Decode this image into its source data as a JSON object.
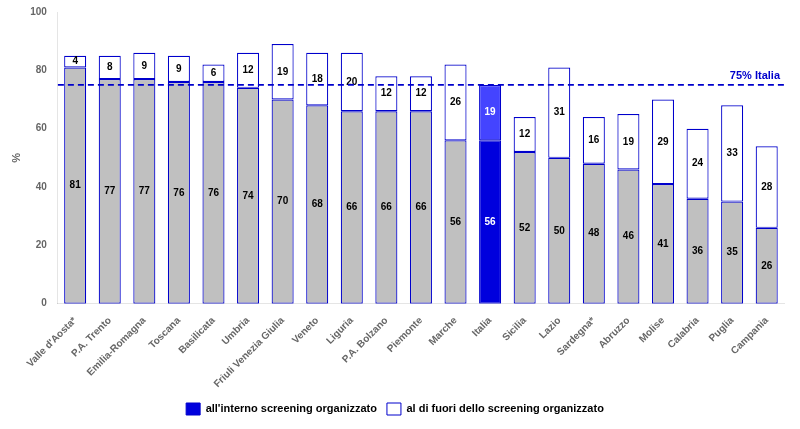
{
  "chart_data": {
    "type": "bar",
    "stacked": true,
    "categories": [
      "Valle d'Aosta*",
      "P.A. Trento",
      "Emilia-Romagna",
      "Toscana",
      "Basilicata",
      "Umbria",
      "Friuli Venezia Giulia",
      "Veneto",
      "Liguria",
      "P.A. Bolzano",
      "Piemonte",
      "Marche",
      "Italia",
      "Sicilia",
      "Lazio",
      "Sardegna*",
      "Abruzzo",
      "Molise",
      "Calabria",
      "Puglia",
      "Campania"
    ],
    "series": [
      {
        "name": "all'interno screening organizzato",
        "color": "#0000dd",
        "colors": [
          "#c0c0c0",
          "#c0c0c0",
          "#c0c0c0",
          "#c0c0c0",
          "#c0c0c0",
          "#c0c0c0",
          "#c0c0c0",
          "#c0c0c0",
          "#c0c0c0",
          "#c0c0c0",
          "#c0c0c0",
          "#c0c0c0",
          "#0000dd",
          "#c0c0c0",
          "#c0c0c0",
          "#c0c0c0",
          "#c0c0c0",
          "#c0c0c0",
          "#c0c0c0",
          "#c0c0c0",
          "#c0c0c0"
        ],
        "values": [
          81,
          77,
          77,
          76,
          76,
          74,
          70,
          68,
          66,
          66,
          66,
          56,
          56,
          52,
          50,
          48,
          46,
          41,
          36,
          35,
          26
        ]
      },
      {
        "name": "al di fuori dello screening organizzato",
        "color": "#ffffff",
        "colors": [
          "#ffffff",
          "#ffffff",
          "#ffffff",
          "#ffffff",
          "#ffffff",
          "#ffffff",
          "#ffffff",
          "#ffffff",
          "#ffffff",
          "#ffffff",
          "#ffffff",
          "#ffffff",
          "#4444ff",
          "#ffffff",
          "#ffffff",
          "#ffffff",
          "#ffffff",
          "#ffffff",
          "#ffffff",
          "#ffffff",
          "#ffffff"
        ],
        "values": [
          4,
          8,
          9,
          9,
          6,
          12,
          19,
          18,
          20,
          12,
          12,
          26,
          19,
          12,
          31,
          16,
          19,
          29,
          24,
          33,
          28
        ]
      }
    ],
    "edge_color": "#0000cc",
    "ylabel": "%",
    "ylim": [
      0,
      100
    ],
    "yticks": [
      0,
      20,
      40,
      60,
      80,
      100
    ],
    "grid": false,
    "legend": "bottom",
    "data_labels": true,
    "reference_line": {
      "value": 75,
      "label": "75% Italia",
      "color": "#0000cc"
    }
  }
}
